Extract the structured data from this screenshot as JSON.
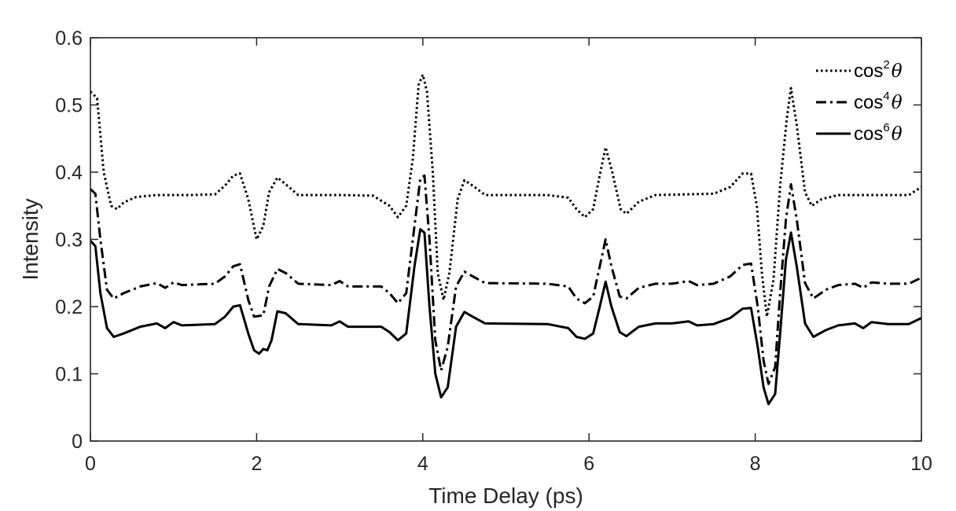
{
  "chart_data": {
    "type": "line",
    "title": "",
    "xlabel": "Time Delay (ps)",
    "ylabel": "Intensity",
    "xlim": [
      0,
      10
    ],
    "ylim": [
      0,
      0.6
    ],
    "xticks": [
      0,
      2,
      4,
      6,
      8,
      10
    ],
    "yticks": [
      0,
      0.1,
      0.2,
      0.3,
      0.4,
      0.5,
      0.6
    ],
    "x_tick_labels": [
      "0",
      "2",
      "4",
      "6",
      "8",
      "10"
    ],
    "y_tick_labels": [
      "0",
      "0.1",
      "0.2",
      "0.3",
      "0.4",
      "0.5",
      "0.6"
    ],
    "grid": false,
    "legend_position": "top-right",
    "legend_theta": "θ",
    "series": [
      {
        "name": "cos²θ",
        "legend_base": "cos",
        "legend_exp": "2",
        "line_style": "dotted",
        "color": "#000000",
        "points": [
          [
            0,
            0.52
          ],
          [
            0.08,
            0.51
          ],
          [
            0.16,
            0.4
          ],
          [
            0.25,
            0.35
          ],
          [
            0.32,
            0.345
          ],
          [
            0.4,
            0.355
          ],
          [
            0.55,
            0.363
          ],
          [
            0.8,
            0.366
          ],
          [
            1.2,
            0.366
          ],
          [
            1.5,
            0.367
          ],
          [
            1.62,
            0.38
          ],
          [
            1.72,
            0.395
          ],
          [
            1.8,
            0.398
          ],
          [
            1.9,
            0.36
          ],
          [
            2.0,
            0.3
          ],
          [
            2.08,
            0.32
          ],
          [
            2.15,
            0.37
          ],
          [
            2.25,
            0.392
          ],
          [
            2.35,
            0.382
          ],
          [
            2.5,
            0.366
          ],
          [
            3.0,
            0.366
          ],
          [
            3.4,
            0.365
          ],
          [
            3.6,
            0.35
          ],
          [
            3.7,
            0.333
          ],
          [
            3.8,
            0.35
          ],
          [
            3.88,
            0.42
          ],
          [
            3.95,
            0.53
          ],
          [
            4.0,
            0.545
          ],
          [
            4.05,
            0.52
          ],
          [
            4.12,
            0.4
          ],
          [
            4.18,
            0.25
          ],
          [
            4.25,
            0.21
          ],
          [
            4.32,
            0.25
          ],
          [
            4.42,
            0.36
          ],
          [
            4.5,
            0.388
          ],
          [
            4.6,
            0.38
          ],
          [
            4.75,
            0.366
          ],
          [
            5.5,
            0.366
          ],
          [
            5.75,
            0.362
          ],
          [
            5.85,
            0.345
          ],
          [
            5.95,
            0.333
          ],
          [
            6.05,
            0.345
          ],
          [
            6.12,
            0.39
          ],
          [
            6.2,
            0.437
          ],
          [
            6.28,
            0.4
          ],
          [
            6.38,
            0.345
          ],
          [
            6.45,
            0.338
          ],
          [
            6.6,
            0.356
          ],
          [
            6.8,
            0.366
          ],
          [
            7.5,
            0.368
          ],
          [
            7.7,
            0.378
          ],
          [
            7.85,
            0.398
          ],
          [
            7.95,
            0.398
          ],
          [
            8.02,
            0.35
          ],
          [
            8.08,
            0.25
          ],
          [
            8.14,
            0.185
          ],
          [
            8.22,
            0.24
          ],
          [
            8.3,
            0.38
          ],
          [
            8.38,
            0.48
          ],
          [
            8.43,
            0.525
          ],
          [
            8.5,
            0.47
          ],
          [
            8.6,
            0.37
          ],
          [
            8.68,
            0.35
          ],
          [
            8.8,
            0.36
          ],
          [
            9.0,
            0.366
          ],
          [
            9.5,
            0.366
          ],
          [
            9.85,
            0.366
          ],
          [
            10.0,
            0.378
          ]
        ]
      },
      {
        "name": "cos⁴θ",
        "legend_base": "cos",
        "legend_exp": "4",
        "line_style": "dash-dot",
        "color": "#000000",
        "points": [
          [
            0,
            0.375
          ],
          [
            0.06,
            0.368
          ],
          [
            0.12,
            0.3
          ],
          [
            0.2,
            0.225
          ],
          [
            0.28,
            0.212
          ],
          [
            0.4,
            0.22
          ],
          [
            0.6,
            0.23
          ],
          [
            0.8,
            0.235
          ],
          [
            0.9,
            0.228
          ],
          [
            1.0,
            0.236
          ],
          [
            1.1,
            0.232
          ],
          [
            1.5,
            0.234
          ],
          [
            1.62,
            0.245
          ],
          [
            1.72,
            0.26
          ],
          [
            1.8,
            0.263
          ],
          [
            1.9,
            0.21
          ],
          [
            1.97,
            0.185
          ],
          [
            2.08,
            0.187
          ],
          [
            2.15,
            0.23
          ],
          [
            2.25,
            0.256
          ],
          [
            2.35,
            0.25
          ],
          [
            2.5,
            0.234
          ],
          [
            2.9,
            0.232
          ],
          [
            3.0,
            0.238
          ],
          [
            3.1,
            0.23
          ],
          [
            3.5,
            0.23
          ],
          [
            3.6,
            0.22
          ],
          [
            3.7,
            0.205
          ],
          [
            3.8,
            0.22
          ],
          [
            3.9,
            0.32
          ],
          [
            3.97,
            0.39
          ],
          [
            4.02,
            0.395
          ],
          [
            4.08,
            0.3
          ],
          [
            4.15,
            0.15
          ],
          [
            4.22,
            0.105
          ],
          [
            4.3,
            0.14
          ],
          [
            4.4,
            0.23
          ],
          [
            4.5,
            0.252
          ],
          [
            4.6,
            0.245
          ],
          [
            4.75,
            0.235
          ],
          [
            5.5,
            0.234
          ],
          [
            5.75,
            0.23
          ],
          [
            5.85,
            0.212
          ],
          [
            5.95,
            0.205
          ],
          [
            6.05,
            0.215
          ],
          [
            6.13,
            0.26
          ],
          [
            6.2,
            0.3
          ],
          [
            6.27,
            0.26
          ],
          [
            6.37,
            0.215
          ],
          [
            6.45,
            0.212
          ],
          [
            6.6,
            0.228
          ],
          [
            6.8,
            0.234
          ],
          [
            7.0,
            0.234
          ],
          [
            7.2,
            0.238
          ],
          [
            7.3,
            0.232
          ],
          [
            7.5,
            0.234
          ],
          [
            7.7,
            0.245
          ],
          [
            7.85,
            0.262
          ],
          [
            7.95,
            0.264
          ],
          [
            8.03,
            0.2
          ],
          [
            8.1,
            0.12
          ],
          [
            8.16,
            0.085
          ],
          [
            8.24,
            0.11
          ],
          [
            8.3,
            0.22
          ],
          [
            8.37,
            0.33
          ],
          [
            8.43,
            0.382
          ],
          [
            8.5,
            0.33
          ],
          [
            8.6,
            0.235
          ],
          [
            8.7,
            0.212
          ],
          [
            8.85,
            0.225
          ],
          [
            9.0,
            0.232
          ],
          [
            9.2,
            0.234
          ],
          [
            9.3,
            0.228
          ],
          [
            9.4,
            0.236
          ],
          [
            9.6,
            0.234
          ],
          [
            9.85,
            0.234
          ],
          [
            10.0,
            0.243
          ]
        ]
      },
      {
        "name": "cos⁶θ",
        "legend_base": "cos",
        "legend_exp": "6",
        "line_style": "solid",
        "color": "#000000",
        "points": [
          [
            0,
            0.298
          ],
          [
            0.06,
            0.29
          ],
          [
            0.12,
            0.22
          ],
          [
            0.2,
            0.168
          ],
          [
            0.28,
            0.155
          ],
          [
            0.4,
            0.16
          ],
          [
            0.6,
            0.17
          ],
          [
            0.8,
            0.175
          ],
          [
            0.9,
            0.168
          ],
          [
            1.0,
            0.177
          ],
          [
            1.1,
            0.172
          ],
          [
            1.5,
            0.174
          ],
          [
            1.62,
            0.185
          ],
          [
            1.72,
            0.2
          ],
          [
            1.8,
            0.202
          ],
          [
            1.9,
            0.16
          ],
          [
            1.97,
            0.135
          ],
          [
            2.03,
            0.13
          ],
          [
            2.08,
            0.137
          ],
          [
            2.13,
            0.135
          ],
          [
            2.18,
            0.15
          ],
          [
            2.25,
            0.193
          ],
          [
            2.35,
            0.19
          ],
          [
            2.5,
            0.174
          ],
          [
            2.9,
            0.172
          ],
          [
            3.0,
            0.178
          ],
          [
            3.1,
            0.17
          ],
          [
            3.5,
            0.17
          ],
          [
            3.6,
            0.162
          ],
          [
            3.7,
            0.15
          ],
          [
            3.8,
            0.16
          ],
          [
            3.9,
            0.26
          ],
          [
            3.97,
            0.315
          ],
          [
            4.02,
            0.31
          ],
          [
            4.08,
            0.2
          ],
          [
            4.15,
            0.1
          ],
          [
            4.22,
            0.065
          ],
          [
            4.3,
            0.08
          ],
          [
            4.4,
            0.17
          ],
          [
            4.5,
            0.192
          ],
          [
            4.6,
            0.185
          ],
          [
            4.75,
            0.175
          ],
          [
            5.5,
            0.174
          ],
          [
            5.75,
            0.168
          ],
          [
            5.85,
            0.155
          ],
          [
            5.95,
            0.152
          ],
          [
            6.05,
            0.16
          ],
          [
            6.13,
            0.2
          ],
          [
            6.2,
            0.237
          ],
          [
            6.27,
            0.2
          ],
          [
            6.37,
            0.162
          ],
          [
            6.45,
            0.156
          ],
          [
            6.6,
            0.17
          ],
          [
            6.8,
            0.175
          ],
          [
            7.0,
            0.175
          ],
          [
            7.2,
            0.178
          ],
          [
            7.3,
            0.172
          ],
          [
            7.5,
            0.174
          ],
          [
            7.7,
            0.183
          ],
          [
            7.85,
            0.197
          ],
          [
            7.95,
            0.198
          ],
          [
            8.03,
            0.14
          ],
          [
            8.1,
            0.08
          ],
          [
            8.16,
            0.055
          ],
          [
            8.24,
            0.07
          ],
          [
            8.3,
            0.16
          ],
          [
            8.37,
            0.27
          ],
          [
            8.43,
            0.31
          ],
          [
            8.5,
            0.26
          ],
          [
            8.6,
            0.175
          ],
          [
            8.7,
            0.155
          ],
          [
            8.85,
            0.165
          ],
          [
            9.0,
            0.172
          ],
          [
            9.2,
            0.175
          ],
          [
            9.3,
            0.168
          ],
          [
            9.4,
            0.177
          ],
          [
            9.6,
            0.174
          ],
          [
            9.85,
            0.174
          ],
          [
            10.0,
            0.183
          ]
        ]
      }
    ]
  }
}
